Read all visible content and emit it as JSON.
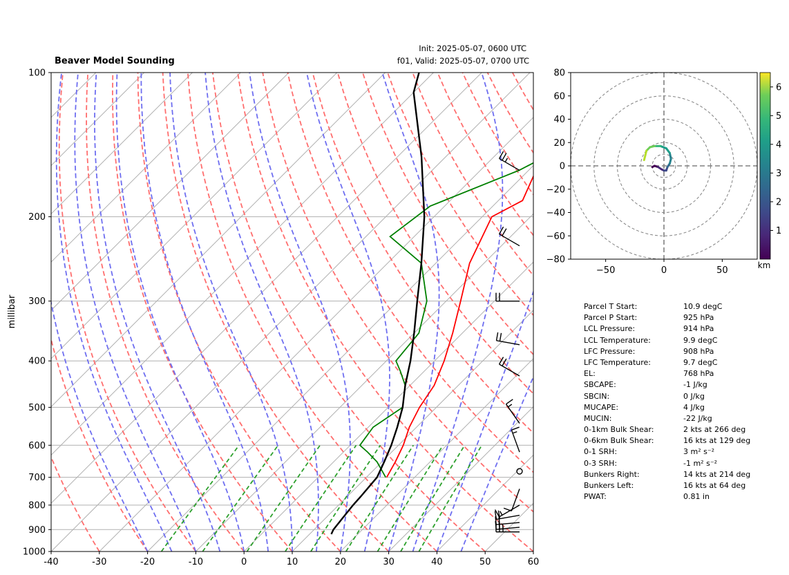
{
  "skewt": {
    "title": "Beaver Model Sounding",
    "init_text": "Init: 2025-05-07, 0600 UTC",
    "valid_text": "f01, Valid: 2025-05-07, 0700 UTC",
    "ylabel": "millibar",
    "x_ticks": [
      "-40",
      "-30",
      "-20",
      "-10",
      "0",
      "10",
      "20",
      "30",
      "40",
      "50",
      "60"
    ],
    "y_ticks": [
      {
        "p": 100,
        "label": "100"
      },
      {
        "p": 200,
        "label": "200"
      },
      {
        "p": 300,
        "label": "300"
      },
      {
        "p": 400,
        "label": "400"
      },
      {
        "p": 500,
        "label": "500"
      },
      {
        "p": 600,
        "label": "600"
      },
      {
        "p": 700,
        "label": "700"
      },
      {
        "p": 800,
        "label": "800"
      },
      {
        "p": 900,
        "label": "900"
      },
      {
        "p": 1000,
        "label": "1000"
      }
    ]
  },
  "hodo": {
    "x_ticks": [
      "−50",
      "0",
      "50"
    ],
    "y_ticks": [
      "80",
      "60",
      "40",
      "20",
      "0",
      "−20",
      "−40",
      "−60",
      "−80"
    ],
    "colorbar_ticks": [
      "1",
      "2",
      "3",
      "4",
      "5",
      "6"
    ],
    "colorbar_label": "km"
  },
  "stats": [
    {
      "label": "Parcel T Start:",
      "value": "10.9 degC"
    },
    {
      "label": "Parcel P Start:",
      "value": "925 hPa"
    },
    {
      "label": "LCL Pressure:",
      "value": "914 hPa"
    },
    {
      "label": "LCL Temperature:",
      "value": "9.9 degC"
    },
    {
      "label": "LFC Pressure:",
      "value": "908 hPa"
    },
    {
      "label": "LFC Temperature:",
      "value": "9.7 degC"
    },
    {
      "label": "EL:",
      "value": "768 hPa"
    },
    {
      "label": "SBCAPE:",
      "value": "-1 J/kg"
    },
    {
      "label": "SBCIN:",
      "value": "0 J/kg"
    },
    {
      "label": "MUCAPE:",
      "value": "4 J/kg"
    },
    {
      "label": "MUCIN:",
      "value": "-22 J/kg"
    },
    {
      "label": "0-1km Bulk Shear:",
      "value": "2 kts at 266 deg"
    },
    {
      "label": "0-6km Bulk Shear:",
      "value": "16 kts at 129 deg"
    },
    {
      "label": "0-1 SRH:",
      "value": "3 m² s⁻²"
    },
    {
      "label": "0-3 SRH:",
      "value": "-1 m² s⁻²"
    },
    {
      "label": "Bunkers Right:",
      "value": "14 kts at 214 deg"
    },
    {
      "label": "Bunkers Left:",
      "value": "16 kts at 64 deg"
    },
    {
      "label": "PWAT:",
      "value": "0.81 in"
    }
  ],
  "chart_data": [
    {
      "type": "line",
      "title": "Beaver Model Sounding",
      "ylabel": "millibar",
      "xlim": [
        -40,
        60
      ],
      "ylim": [
        1000,
        100
      ],
      "y_scale": "log",
      "grid": true,
      "series": [
        {
          "name": "",
          "role": "temperature",
          "color": "#ff0000",
          "p": [
            700,
            650,
            600,
            550,
            500,
            450,
            400,
            350,
            300,
            250,
            200,
            185,
            150,
            100
          ],
          "t": [
            14.2,
            12.8,
            11,
            8.5,
            6.5,
            5,
            2,
            -2,
            -7,
            -13,
            -18,
            -15,
            -20,
            -26
          ]
        },
        {
          "name": "",
          "role": "dewpoint",
          "color": "#008000",
          "p": [
            700,
            650,
            620,
            600,
            550,
            500,
            450,
            420,
            400,
            350,
            300,
            250,
            220,
            190,
            160,
            100
          ],
          "t": [
            14,
            9,
            5,
            2,
            1,
            3,
            -1,
            -5,
            -8,
            -9,
            -14,
            -23,
            -35,
            -33,
            -22,
            -3
          ]
        },
        {
          "name": "",
          "role": "parcel",
          "color": "#000000",
          "p": [
            920,
            900,
            850,
            800,
            768,
            700,
            650,
            600,
            550,
            500,
            450,
            400,
            350,
            300,
            250,
            200,
            150,
            110,
            100
          ],
          "t": [
            14.5,
            14,
            13.5,
            13,
            12.8,
            12.2,
            10.5,
            8.5,
            6,
            3,
            -1,
            -5,
            -10,
            -16,
            -23,
            -32,
            -45,
            -60,
            -63
          ]
        }
      ],
      "wind_barbs": [
        {
          "p": 160,
          "speed_kt": 25,
          "dir_deg": 300
        },
        {
          "p": 230,
          "speed_kt": 20,
          "dir_deg": 300
        },
        {
          "p": 300,
          "speed_kt": 20,
          "dir_deg": 270
        },
        {
          "p": 370,
          "speed_kt": 20,
          "dir_deg": 280
        },
        {
          "p": 430,
          "speed_kt": 20,
          "dir_deg": 300
        },
        {
          "p": 540,
          "speed_kt": 15,
          "dir_deg": 325
        },
        {
          "p": 620,
          "speed_kt": 15,
          "dir_deg": 340
        },
        {
          "p": 680,
          "speed_kt": 0,
          "dir_deg": 0
        },
        {
          "p": 740,
          "speed_kt": 10,
          "dir_deg": 200
        },
        {
          "p": 800,
          "speed_kt": 15,
          "dir_deg": 240
        },
        {
          "p": 840,
          "speed_kt": 20,
          "dir_deg": 260
        },
        {
          "p": 870,
          "speed_kt": 20,
          "dir_deg": 265
        },
        {
          "p": 890,
          "speed_kt": 25,
          "dir_deg": 265
        },
        {
          "p": 910,
          "speed_kt": 25,
          "dir_deg": 270
        }
      ]
    },
    {
      "type": "line",
      "xlim": [
        -80,
        80
      ],
      "ylim": [
        -80,
        80
      ],
      "colorbar_label": "km",
      "colorbar_range": [
        0,
        6.5
      ],
      "rings": [
        10,
        20,
        40,
        60,
        80
      ],
      "points": [
        {
          "u": -10,
          "v": -1,
          "h": 0.1
        },
        {
          "u": -8,
          "v": 0,
          "h": 0.3
        },
        {
          "u": -5,
          "v": -1,
          "h": 0.6
        },
        {
          "u": -2,
          "v": -3,
          "h": 1.0
        },
        {
          "u": 0,
          "v": -4,
          "h": 1.4
        },
        {
          "u": 2,
          "v": -4,
          "h": 1.8
        },
        {
          "u": 3,
          "v": -1,
          "h": 2.2
        },
        {
          "u": 5,
          "v": 2,
          "h": 2.6
        },
        {
          "u": 6,
          "v": 6,
          "h": 3.0
        },
        {
          "u": 5,
          "v": 11,
          "h": 3.4
        },
        {
          "u": 2,
          "v": 15,
          "h": 3.8
        },
        {
          "u": -3,
          "v": 17,
          "h": 4.2
        },
        {
          "u": -8,
          "v": 17,
          "h": 4.7
        },
        {
          "u": -12,
          "v": 16,
          "h": 5.2
        },
        {
          "u": -15,
          "v": 13,
          "h": 5.7
        },
        {
          "u": -16,
          "v": 9,
          "h": 6.1
        },
        {
          "u": -17,
          "v": 5,
          "h": 6.4
        }
      ]
    }
  ]
}
